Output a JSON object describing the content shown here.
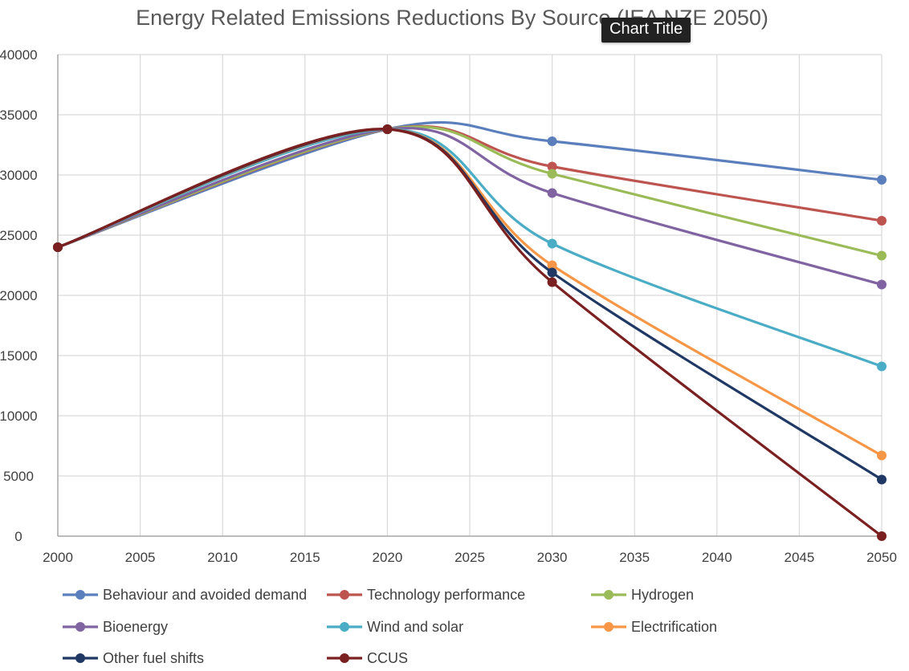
{
  "tooltip": {
    "label": "Chart Title"
  },
  "chart_data": {
    "type": "line",
    "title": "Energy Related Emissions Reductions By Source (IEA NZE 2050)",
    "xlabel": "",
    "ylabel": "",
    "xlim": [
      2000,
      2050
    ],
    "ylim": [
      0,
      40000
    ],
    "x_ticks": [
      2000,
      2005,
      2010,
      2015,
      2020,
      2025,
      2030,
      2035,
      2040,
      2045,
      2050
    ],
    "y_ticks": [
      0,
      5000,
      10000,
      15000,
      20000,
      25000,
      30000,
      35000,
      40000
    ],
    "grid": true,
    "legend_position": "bottom",
    "x": [
      2000,
      2020,
      2030,
      2050
    ],
    "series": [
      {
        "name": "Behaviour and avoided demand",
        "color": "#5b7fbd",
        "values": [
          24000,
          33800,
          32800,
          29600
        ]
      },
      {
        "name": "Technology performance",
        "color": "#bd544f",
        "values": [
          24000,
          33800,
          30700,
          26200
        ]
      },
      {
        "name": "Hydrogen",
        "color": "#9bbb59",
        "values": [
          24000,
          33800,
          30100,
          23300
        ]
      },
      {
        "name": "Bioenergy",
        "color": "#8064a2",
        "values": [
          24000,
          33800,
          28500,
          20900
        ]
      },
      {
        "name": "Wind and solar",
        "color": "#4bacc6",
        "values": [
          24000,
          33800,
          24300,
          14100
        ]
      },
      {
        "name": "Electrification",
        "color": "#f79646",
        "values": [
          24000,
          33800,
          22500,
          6700
        ]
      },
      {
        "name": "Other fuel shifts",
        "color": "#1f3864",
        "values": [
          24000,
          33800,
          21900,
          4700
        ]
      },
      {
        "name": "CCUS",
        "color": "#7b2020",
        "values": [
          24000,
          33800,
          21100,
          0
        ]
      }
    ]
  }
}
